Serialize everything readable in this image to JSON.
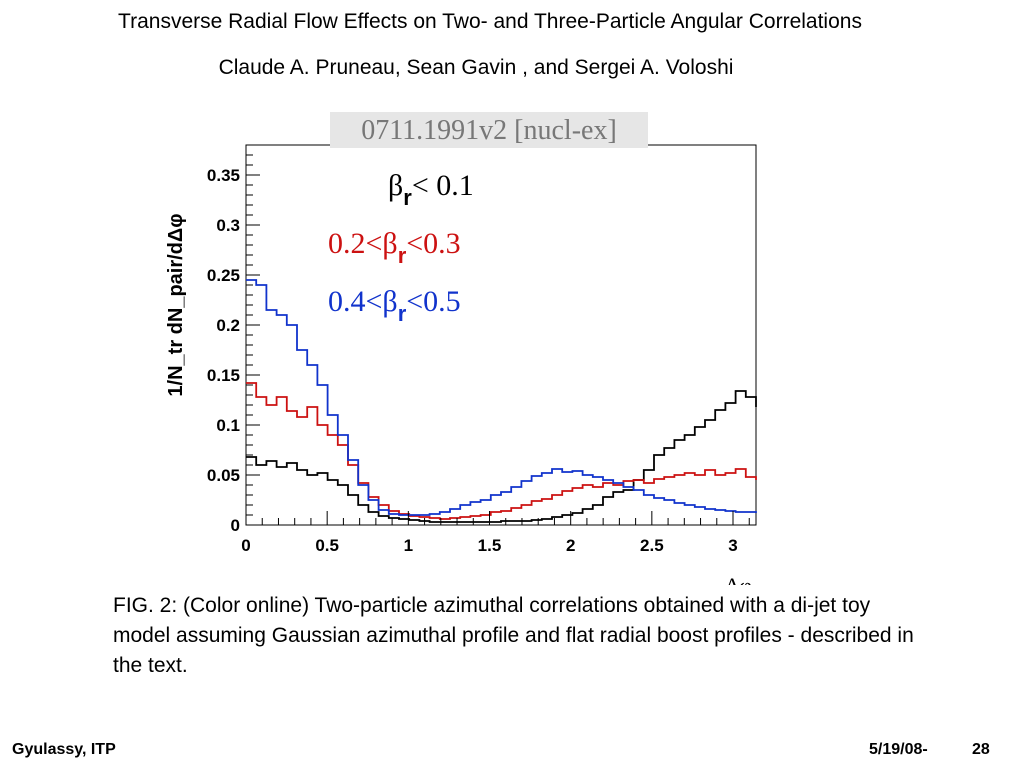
{
  "slide": {
    "title": "Transverse Radial Flow Effects on Two- and Three-Particle Angular Correlations",
    "authors": "Claude A. Pruneau, Sean Gavin , and Sergei A. Voloshi",
    "caption": "FIG. 2: (Color online) Two-particle azimuthal correlations obtained with a di-jet toy model assuming Gaussian azimuthal profile and flat radial boost profiles - described in the text.",
    "footer_left": "Gyulassy, ITP",
    "footer_date": "5/19/08-",
    "footer_page": "28"
  },
  "chart_data": {
    "type": "line",
    "step": true,
    "watermark": "0711.1991v2  [nucl-ex]",
    "ylabel": "1/N_tr dN_pair/dΔφ",
    "xlabel": "Δφ",
    "xlim": [
      0,
      3.1416
    ],
    "ylim": [
      0,
      0.38
    ],
    "xticks": [
      0,
      0.5,
      1,
      1.5,
      2,
      2.5,
      3
    ],
    "xtick_labels": [
      "0",
      "0.5",
      "1",
      "1.5",
      "2",
      "2.5",
      "3"
    ],
    "yticks": [
      0,
      0.05,
      0.1,
      0.15,
      0.2,
      0.25,
      0.3,
      0.35
    ],
    "ytick_labels": [
      "0",
      "0.05",
      "0.1",
      "0.15",
      "0.2",
      "0.25",
      "0.3",
      "0.35"
    ],
    "grid": false,
    "legend_position": "top-right",
    "legend": [
      {
        "name_pre": "β",
        "name_sub": "r",
        "name_post": "< 0.1",
        "color": "#000000"
      },
      {
        "name_pre": "0.2<β",
        "name_sub": "r",
        "name_post": "<0.3",
        "color": "#cc1111"
      },
      {
        "name_pre": "0.4<β",
        "name_sub": "r",
        "name_post": "<0.5",
        "color": "#1133cc"
      }
    ],
    "n_bins": 50,
    "series": [
      {
        "name": "βr< 0.1",
        "color": "#000000",
        "values": [
          0.068,
          0.06,
          0.064,
          0.058,
          0.062,
          0.055,
          0.05,
          0.052,
          0.045,
          0.04,
          0.03,
          0.02,
          0.013,
          0.009,
          0.007,
          0.006,
          0.005,
          0.004,
          0.003,
          0.003,
          0.003,
          0.003,
          0.003,
          0.003,
          0.003,
          0.004,
          0.004,
          0.004,
          0.005,
          0.006,
          0.008,
          0.01,
          0.012,
          0.016,
          0.02,
          0.028,
          0.033,
          0.035,
          0.045,
          0.055,
          0.07,
          0.077,
          0.085,
          0.09,
          0.098,
          0.105,
          0.115,
          0.122,
          0.134,
          0.128,
          0.118
        ]
      },
      {
        "name": "0.2<βr<0.3",
        "color": "#cc1111",
        "values": [
          0.142,
          0.128,
          0.12,
          0.128,
          0.114,
          0.108,
          0.118,
          0.1,
          0.09,
          0.08,
          0.06,
          0.042,
          0.028,
          0.02,
          0.014,
          0.011,
          0.009,
          0.008,
          0.007,
          0.006,
          0.007,
          0.008,
          0.009,
          0.01,
          0.013,
          0.014,
          0.017,
          0.02,
          0.024,
          0.026,
          0.03,
          0.034,
          0.037,
          0.04,
          0.038,
          0.042,
          0.04,
          0.044,
          0.045,
          0.042,
          0.046,
          0.048,
          0.05,
          0.052,
          0.05,
          0.055,
          0.05,
          0.052,
          0.056,
          0.048,
          0.045
        ]
      },
      {
        "name": "0.4<βr<0.5",
        "color": "#1133cc",
        "values": [
          0.245,
          0.24,
          0.215,
          0.21,
          0.2,
          0.175,
          0.16,
          0.14,
          0.11,
          0.09,
          0.065,
          0.04,
          0.025,
          0.015,
          0.011,
          0.01,
          0.01,
          0.01,
          0.011,
          0.013,
          0.016,
          0.02,
          0.023,
          0.025,
          0.03,
          0.033,
          0.038,
          0.044,
          0.049,
          0.052,
          0.056,
          0.053,
          0.054,
          0.05,
          0.048,
          0.045,
          0.042,
          0.038,
          0.035,
          0.03,
          0.027,
          0.025,
          0.022,
          0.02,
          0.018,
          0.016,
          0.015,
          0.014,
          0.013,
          0.013,
          0.012
        ]
      }
    ]
  }
}
